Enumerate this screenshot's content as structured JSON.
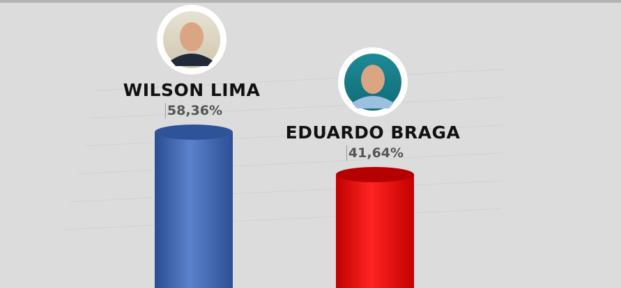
{
  "chart_data": {
    "type": "bar",
    "style": "3d-cylinder",
    "categories": [
      "WILSON LIMA",
      "EDUARDO BRAGA"
    ],
    "values": [
      58.36,
      41.64
    ],
    "value_labels": [
      "58,36%",
      "41,64%"
    ],
    "colors": [
      "#3e64b0",
      "#e01010"
    ],
    "title": "",
    "xlabel": "",
    "ylabel": "",
    "grid": false,
    "legend": "none"
  },
  "photos": [
    "candidate-photo-wilson-lima",
    "candidate-photo-eduardo-braga"
  ],
  "colors": {
    "background": "#dcdcdc"
  }
}
